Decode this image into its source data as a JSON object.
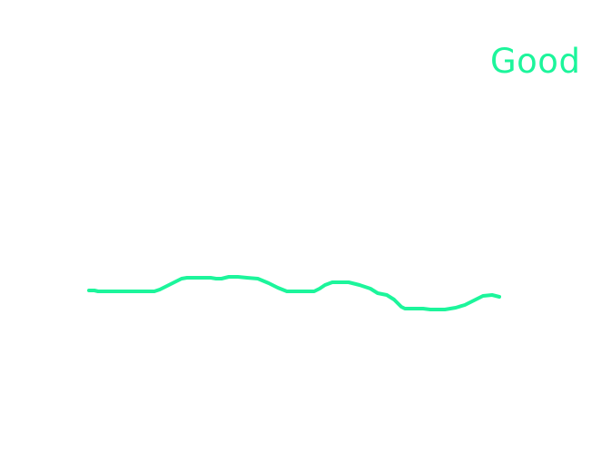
{
  "status": {
    "label": "Good"
  },
  "style": {
    "accent_color": "#1cf59b",
    "background_color": "#ffffff"
  }
}
